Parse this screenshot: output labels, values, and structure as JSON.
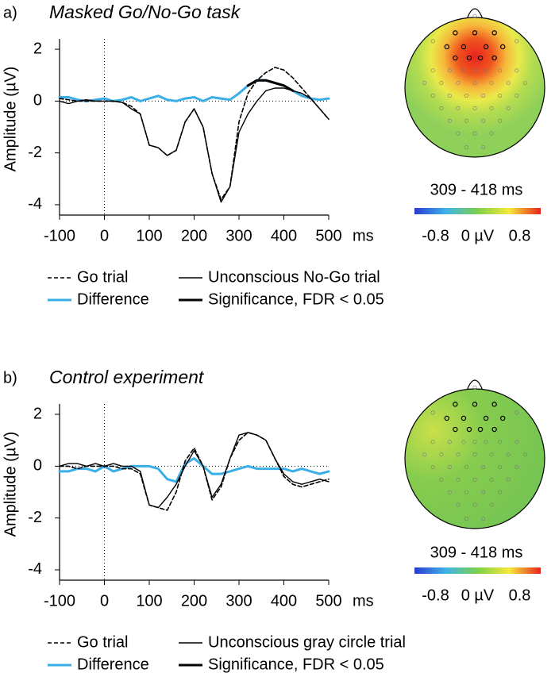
{
  "chart_data": [
    {
      "type": "line",
      "panel": "a)",
      "title": "Masked Go/No-Go task",
      "ylabel": "Amplitude (µV)",
      "xlabel": "ms",
      "x": [
        -100,
        -80,
        -60,
        -40,
        -20,
        0,
        20,
        40,
        60,
        80,
        100,
        120,
        140,
        160,
        180,
        200,
        220,
        240,
        260,
        280,
        300,
        320,
        340,
        360,
        380,
        400,
        420,
        440,
        460,
        480,
        500
      ],
      "xlim": [
        -100,
        500
      ],
      "xticks": [
        -100,
        0,
        100,
        200,
        300,
        400,
        500
      ],
      "ylim": [
        -4.4,
        2.4
      ],
      "yticks": [
        2,
        0,
        -2,
        -4
      ],
      "series": [
        {
          "name": "Go trial",
          "color": "#000000",
          "linestyle": "dashed",
          "values": [
            0.1,
            0.05,
            0.0,
            0.0,
            0.0,
            0.0,
            0.0,
            -0.05,
            -0.2,
            -0.5,
            -1.7,
            -1.8,
            -2.1,
            -1.9,
            -0.8,
            -0.3,
            -1.0,
            -2.8,
            -3.8,
            -3.3,
            -0.8,
            0.3,
            0.8,
            1.1,
            1.3,
            1.2,
            0.9,
            0.5,
            0.1,
            -0.3,
            -0.7
          ]
        },
        {
          "name": "Unconscious No-Go trial",
          "color": "#000000",
          "linestyle": "solid",
          "values": [
            0.0,
            -0.1,
            0.0,
            0.05,
            0.0,
            0.0,
            0.0,
            -0.05,
            -0.3,
            -0.5,
            -1.7,
            -1.8,
            -2.1,
            -1.9,
            -0.8,
            -0.3,
            -1.0,
            -2.8,
            -3.9,
            -3.3,
            -1.2,
            -0.5,
            0.0,
            0.4,
            0.5,
            0.5,
            0.4,
            0.3,
            0.1,
            -0.3,
            -0.7
          ]
        },
        {
          "name": "Difference",
          "color": "#3aaee6",
          "linestyle": "bold",
          "values": [
            0.15,
            0.15,
            0.05,
            0.0,
            0.05,
            0.1,
            0.0,
            0.05,
            0.15,
            0.0,
            0.1,
            0.2,
            0.05,
            0.0,
            0.1,
            0.15,
            0.0,
            0.15,
            0.1,
            0.05,
            0.3,
            0.6,
            0.8,
            0.8,
            0.7,
            0.6,
            0.4,
            0.2,
            0.1,
            0.05,
            0.1
          ]
        },
        {
          "name": "Significance, FDR < 0.05",
          "color": "#000000",
          "linestyle": "bold",
          "values": [
            null,
            null,
            null,
            null,
            null,
            null,
            null,
            null,
            null,
            null,
            null,
            null,
            null,
            null,
            null,
            null,
            null,
            null,
            null,
            null,
            null,
            0.6,
            0.8,
            0.8,
            0.7,
            0.6,
            0.4,
            null,
            null,
            null,
            null
          ]
        }
      ]
    },
    {
      "type": "topomap",
      "title": "309 - 418 ms",
      "clim": [
        -1.2,
        1.2
      ],
      "cticks": [
        -0.8,
        {
          "value": 0,
          "label": "0 µV"
        },
        0.8
      ],
      "colormap": [
        "#2a3bd0",
        "#3fb4e8",
        "#7cd04a",
        "#f6e93a",
        "#e8231e"
      ]
    },
    {
      "type": "line",
      "panel": "b)",
      "title": "Control experiment",
      "ylabel": "Amplitude (µV)",
      "xlabel": "ms",
      "x": [
        -100,
        -80,
        -60,
        -40,
        -20,
        0,
        20,
        40,
        60,
        80,
        100,
        120,
        140,
        160,
        180,
        200,
        220,
        240,
        260,
        280,
        300,
        320,
        340,
        360,
        380,
        400,
        420,
        440,
        460,
        480,
        500
      ],
      "xlim": [
        -100,
        500
      ],
      "xticks": [
        -100,
        0,
        100,
        200,
        300,
        400,
        500
      ],
      "ylim": [
        -4.4,
        2.4
      ],
      "yticks": [
        2,
        0,
        -2,
        -4
      ],
      "series": [
        {
          "name": "Go trial",
          "color": "#000000",
          "linestyle": "dashed",
          "values": [
            0.0,
            0.0,
            -0.1,
            0.0,
            0.0,
            0.0,
            0.0,
            -0.1,
            -0.1,
            -0.3,
            -1.5,
            -1.6,
            -1.7,
            -1.0,
            0.2,
            0.7,
            0.0,
            -1.3,
            -0.8,
            0.3,
            1.0,
            1.3,
            1.2,
            1.0,
            0.3,
            -0.4,
            -0.7,
            -0.8,
            -0.7,
            -0.6,
            -0.5
          ]
        },
        {
          "name": "Unconscious gray circle trial",
          "color": "#000000",
          "linestyle": "solid",
          "values": [
            0.0,
            0.1,
            0.1,
            0.0,
            0.1,
            0.0,
            0.1,
            0.0,
            0.0,
            -0.2,
            -1.5,
            -1.6,
            -1.2,
            -0.7,
            0.0,
            0.6,
            0.0,
            -1.2,
            -0.7,
            0.3,
            1.2,
            1.3,
            1.2,
            1.0,
            0.3,
            -0.3,
            -0.6,
            -0.7,
            -0.6,
            -0.5,
            -0.6
          ]
        },
        {
          "name": "Difference",
          "color": "#3aaee6",
          "linestyle": "bold",
          "values": [
            -0.2,
            -0.2,
            -0.1,
            -0.1,
            -0.2,
            0.0,
            -0.2,
            -0.1,
            0.0,
            0.0,
            0.0,
            -0.1,
            -0.5,
            -0.6,
            0.1,
            0.3,
            0.0,
            -0.3,
            -0.3,
            -0.2,
            -0.1,
            0.0,
            -0.1,
            -0.1,
            -0.1,
            -0.1,
            -0.2,
            -0.1,
            -0.2,
            -0.3,
            -0.2
          ]
        },
        {
          "name": "Significance, FDR < 0.05",
          "color": "#000000",
          "linestyle": "bold",
          "values": [
            null,
            null,
            null,
            null,
            null,
            null,
            null,
            null,
            null,
            null,
            null,
            null,
            null,
            null,
            null,
            null,
            null,
            null,
            null,
            null,
            null,
            null,
            null,
            null,
            null,
            null,
            null,
            null,
            null,
            null,
            null
          ]
        }
      ]
    },
    {
      "type": "topomap",
      "title": "309 - 418 ms",
      "clim": [
        -1.2,
        1.2
      ],
      "cticks": [
        -0.8,
        {
          "value": 0,
          "label": "0 µV"
        },
        0.8
      ],
      "colormap": [
        "#2a3bd0",
        "#3fb4e8",
        "#7cd04a",
        "#f6e93a",
        "#e8231e"
      ]
    }
  ]
}
